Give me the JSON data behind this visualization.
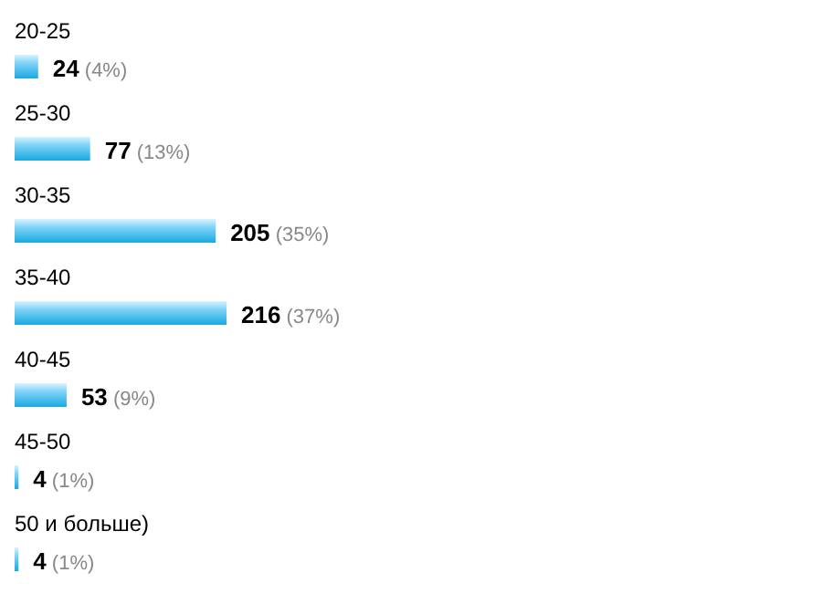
{
  "chart_data": {
    "type": "bar",
    "orientation": "horizontal",
    "categories": [
      "20-25",
      "25-30",
      "30-35",
      "35-40",
      "40-45",
      "45-50",
      "50 и больше)"
    ],
    "values": [
      24,
      77,
      205,
      216,
      53,
      4,
      4
    ],
    "value_labels": [
      "24 (4%)",
      "77 (13%)",
      "205 (35%)",
      "216 (37%)",
      "53 (9%)",
      "4 (1%)",
      "4 (1%)"
    ],
    "color": "#19a9e0"
  }
}
